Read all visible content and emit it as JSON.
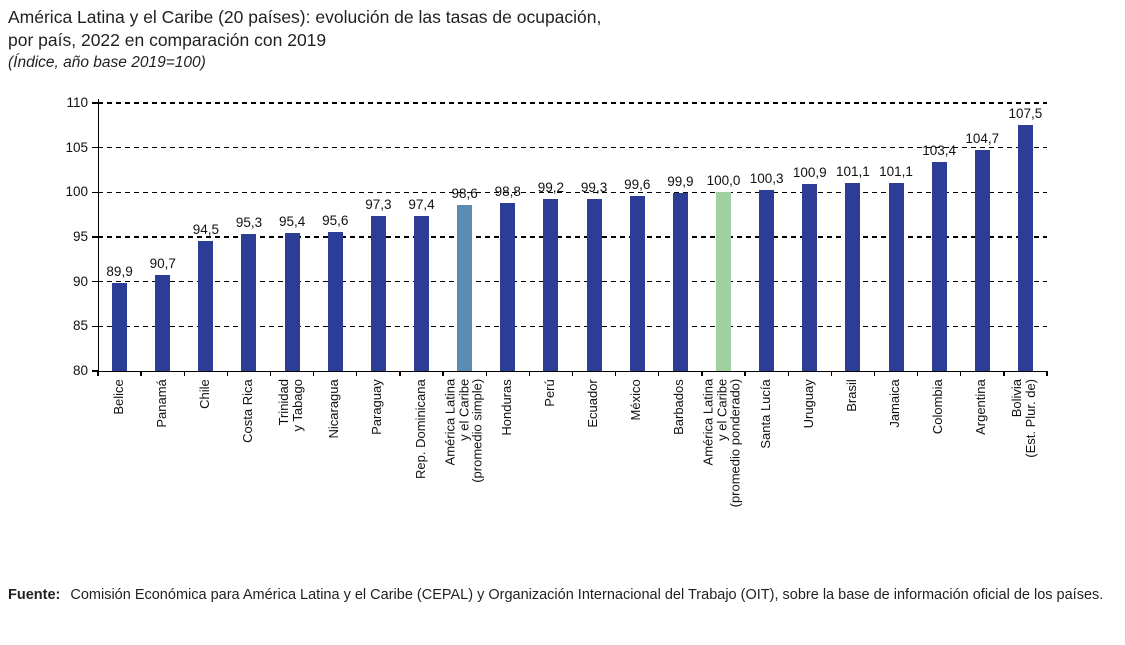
{
  "title": {
    "line1": "América Latina y el Caribe (20 países): evolución de las tasas de ocupación,",
    "line2": "por país, 2022 en comparación con 2019",
    "subtitle": "(Índice, año base 2019=100)"
  },
  "source": {
    "label": "Fuente:",
    "text": "Comisión Económica para América Latina y el Caribe (CEPAL) y Organización Internacional del Trabajo (OIT), sobre la base de información oficial de los países."
  },
  "colors": {
    "bar_default": "#2c3d96",
    "bar_simple_average": "#5a8cb3",
    "bar_weighted_average": "#a1cf9f",
    "axis": "#000000",
    "text": "#111111"
  },
  "chart_data": {
    "type": "bar",
    "title": "América Latina y el Caribe (20 países): evolución de las tasas de ocupación, por país, 2022 en comparación con 2019",
    "subtitle": "(Índice, año base 2019=100)",
    "xlabel": "",
    "ylabel": "",
    "ylim": [
      80,
      110
    ],
    "yticks": [
      80,
      85,
      90,
      95,
      100,
      105,
      110
    ],
    "grid": "horizontal-dashed",
    "legend": "none",
    "decimal_separator": ",",
    "categories": [
      "Belice",
      "Panamá",
      "Chile",
      "Costa Rica",
      "Trinidad y Tabago",
      "Nicaragua",
      "Paraguay",
      "Rep. Dominicana",
      "América Latina y el Caribe (promedio simple)",
      "Honduras",
      "Perú",
      "Ecuador",
      "México",
      "Barbados",
      "América Latina y el Caribe (promedio ponderado)",
      "Santa Lucía",
      "Uruguay",
      "Brasil",
      "Jamaica",
      "Colombia",
      "Argentina",
      "Bolivia (Est. Plur. de)"
    ],
    "category_lines": [
      [
        "Belice"
      ],
      [
        "Panamá"
      ],
      [
        "Chile"
      ],
      [
        "Costa Rica"
      ],
      [
        "Trinidad",
        "y Tabago"
      ],
      [
        "Nicaragua"
      ],
      [
        "Paraguay"
      ],
      [
        "Rep. Dominicana"
      ],
      [
        "América Latina",
        "y el Caribe",
        "(promedio simple)"
      ],
      [
        "Honduras"
      ],
      [
        "Perú"
      ],
      [
        "Ecuador"
      ],
      [
        "México"
      ],
      [
        "Barbados"
      ],
      [
        "América Latina",
        "y el Caribe",
        "(promedio ponderado)"
      ],
      [
        "Santa Lucía"
      ],
      [
        "Uruguay"
      ],
      [
        "Brasil"
      ],
      [
        "Jamaica"
      ],
      [
        "Colombia"
      ],
      [
        "Argentina"
      ],
      [
        "Bolivia",
        "(Est. Plur. de)"
      ]
    ],
    "values": [
      89.9,
      90.7,
      94.5,
      95.3,
      95.4,
      95.6,
      97.3,
      97.4,
      98.6,
      98.8,
      99.2,
      99.3,
      99.6,
      99.9,
      100.0,
      100.3,
      100.9,
      101.1,
      101.1,
      103.4,
      104.7,
      107.5
    ],
    "value_labels": [
      "89,9",
      "90,7",
      "94,5",
      "95,3",
      "95,4",
      "95,6",
      "97,3",
      "97,4",
      "98,6",
      "98,8",
      "99,2",
      "99,3",
      "99,6",
      "99,9",
      "100,0",
      "100,3",
      "100,9",
      "101,1",
      "101,1",
      "103,4",
      "104,7",
      "107,5"
    ],
    "bar_roles": [
      "default",
      "default",
      "default",
      "default",
      "default",
      "default",
      "default",
      "default",
      "simple_average",
      "default",
      "default",
      "default",
      "default",
      "default",
      "weighted_average",
      "default",
      "default",
      "default",
      "default",
      "default",
      "default",
      "default"
    ]
  }
}
